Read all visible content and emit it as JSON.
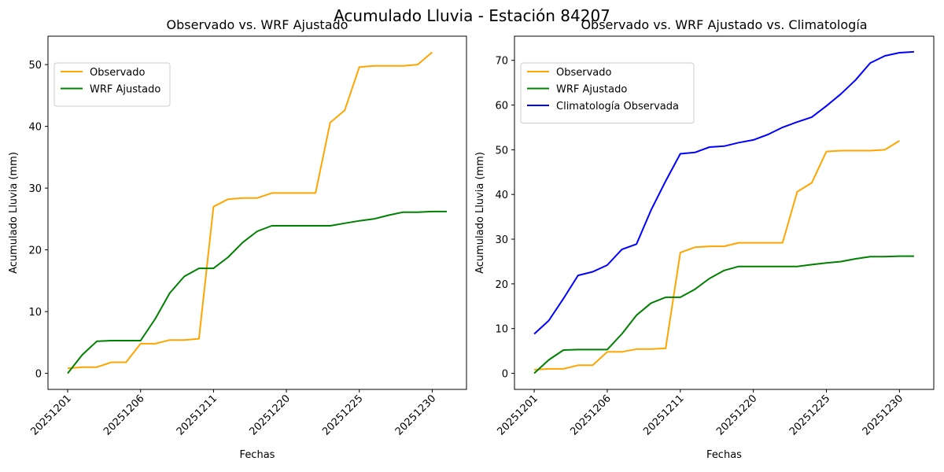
{
  "figure": {
    "suptitle": "Acumulado Lluvia - Estación 84207"
  },
  "colors": {
    "observado": "#ffa500",
    "wrf": "#008000",
    "climatologia": "#0000ff"
  },
  "chart_data": [
    {
      "type": "line",
      "title": "Observado vs. WRF Ajustado",
      "xlabel": "Fechas",
      "ylabel": "Acumulado Lluvia (mm)",
      "x_tick_labels": [
        "20251201",
        "20251206",
        "20251211",
        "20251220",
        "20251225",
        "20251230"
      ],
      "x_tick_positions": [
        0,
        5,
        10,
        15,
        20,
        25
      ],
      "y_ticks": [
        0,
        10,
        20,
        30,
        40,
        50
      ],
      "xlim": [
        -1.35,
        27.35
      ],
      "ylim": [
        -2.6,
        54.6
      ],
      "grid": false,
      "legend_placement": "upper-left",
      "series": [
        {
          "name": "Observado",
          "color": "#ffa500",
          "x": [
            0,
            1,
            2,
            3,
            4,
            5,
            6,
            7,
            8,
            9,
            10,
            11,
            12,
            13,
            14,
            15,
            16,
            17,
            18,
            19,
            20,
            21,
            22,
            23,
            24,
            25
          ],
          "y": [
            0.8,
            1.0,
            1.0,
            1.8,
            1.8,
            4.8,
            4.8,
            5.4,
            5.4,
            5.6,
            27.0,
            28.2,
            28.4,
            28.4,
            29.2,
            29.2,
            29.2,
            29.2,
            40.6,
            42.6,
            49.6,
            49.8,
            49.8,
            49.8,
            50.0,
            52.0
          ]
        },
        {
          "name": "WRF Ajustado",
          "color": "#008000",
          "x": [
            0,
            1,
            2,
            3,
            4,
            5,
            6,
            7,
            8,
            9,
            10,
            11,
            12,
            13,
            14,
            15,
            16,
            17,
            18,
            19,
            20,
            21,
            22,
            23,
            24,
            25,
            26
          ],
          "y": [
            0.0,
            3.0,
            5.2,
            5.3,
            5.3,
            5.3,
            8.8,
            13.0,
            15.7,
            17.0,
            17.0,
            18.8,
            21.2,
            23.0,
            23.9,
            23.9,
            23.9,
            23.9,
            23.9,
            24.3,
            24.7,
            25.0,
            25.6,
            26.1,
            26.1,
            26.2,
            26.2
          ]
        }
      ]
    },
    {
      "type": "line",
      "title": "Observado vs. WRF Ajustado vs. Climatología",
      "xlabel": "Fechas",
      "ylabel": "Acumulado Lluvia (mm)",
      "x_tick_labels": [
        "20251201",
        "20251206",
        "20251211",
        "20251220",
        "20251225",
        "20251230"
      ],
      "x_tick_positions": [
        0,
        5,
        10,
        15,
        20,
        25
      ],
      "y_ticks": [
        0,
        10,
        20,
        30,
        40,
        50,
        60,
        70
      ],
      "xlim": [
        -1.35,
        27.35
      ],
      "ylim": [
        -3.6,
        75.4
      ],
      "grid": false,
      "legend_placement": "upper-left",
      "series": [
        {
          "name": "Observado",
          "color": "#ffa500",
          "x": [
            0,
            1,
            2,
            3,
            4,
            5,
            6,
            7,
            8,
            9,
            10,
            11,
            12,
            13,
            14,
            15,
            16,
            17,
            18,
            19,
            20,
            21,
            22,
            23,
            24,
            25
          ],
          "y": [
            0.8,
            1.0,
            1.0,
            1.8,
            1.8,
            4.8,
            4.8,
            5.4,
            5.4,
            5.6,
            27.0,
            28.2,
            28.4,
            28.4,
            29.2,
            29.2,
            29.2,
            29.2,
            40.6,
            42.6,
            49.6,
            49.8,
            49.8,
            49.8,
            50.0,
            52.0
          ]
        },
        {
          "name": "WRF Ajustado",
          "color": "#008000",
          "x": [
            0,
            1,
            2,
            3,
            4,
            5,
            6,
            7,
            8,
            9,
            10,
            11,
            12,
            13,
            14,
            15,
            16,
            17,
            18,
            19,
            20,
            21,
            22,
            23,
            24,
            25,
            26
          ],
          "y": [
            0.0,
            3.0,
            5.2,
            5.3,
            5.3,
            5.3,
            8.8,
            13.0,
            15.7,
            17.0,
            17.0,
            18.8,
            21.2,
            23.0,
            23.9,
            23.9,
            23.9,
            23.9,
            23.9,
            24.3,
            24.7,
            25.0,
            25.6,
            26.1,
            26.1,
            26.2,
            26.2
          ]
        },
        {
          "name": "Climatología Observada",
          "color": "#0000ff",
          "x": [
            0,
            1,
            2,
            3,
            4,
            5,
            6,
            7,
            8,
            9,
            10,
            11,
            12,
            13,
            14,
            15,
            16,
            17,
            18,
            19,
            20,
            21,
            22,
            23,
            24,
            25,
            26
          ],
          "y": [
            8.8,
            11.8,
            16.7,
            21.9,
            22.7,
            24.2,
            27.7,
            28.9,
            36.5,
            43.0,
            49.1,
            49.4,
            50.6,
            50.8,
            51.6,
            52.2,
            53.4,
            55.0,
            56.2,
            57.3,
            59.8,
            62.5,
            65.6,
            69.4,
            71.0,
            71.7,
            71.9
          ]
        }
      ]
    }
  ]
}
